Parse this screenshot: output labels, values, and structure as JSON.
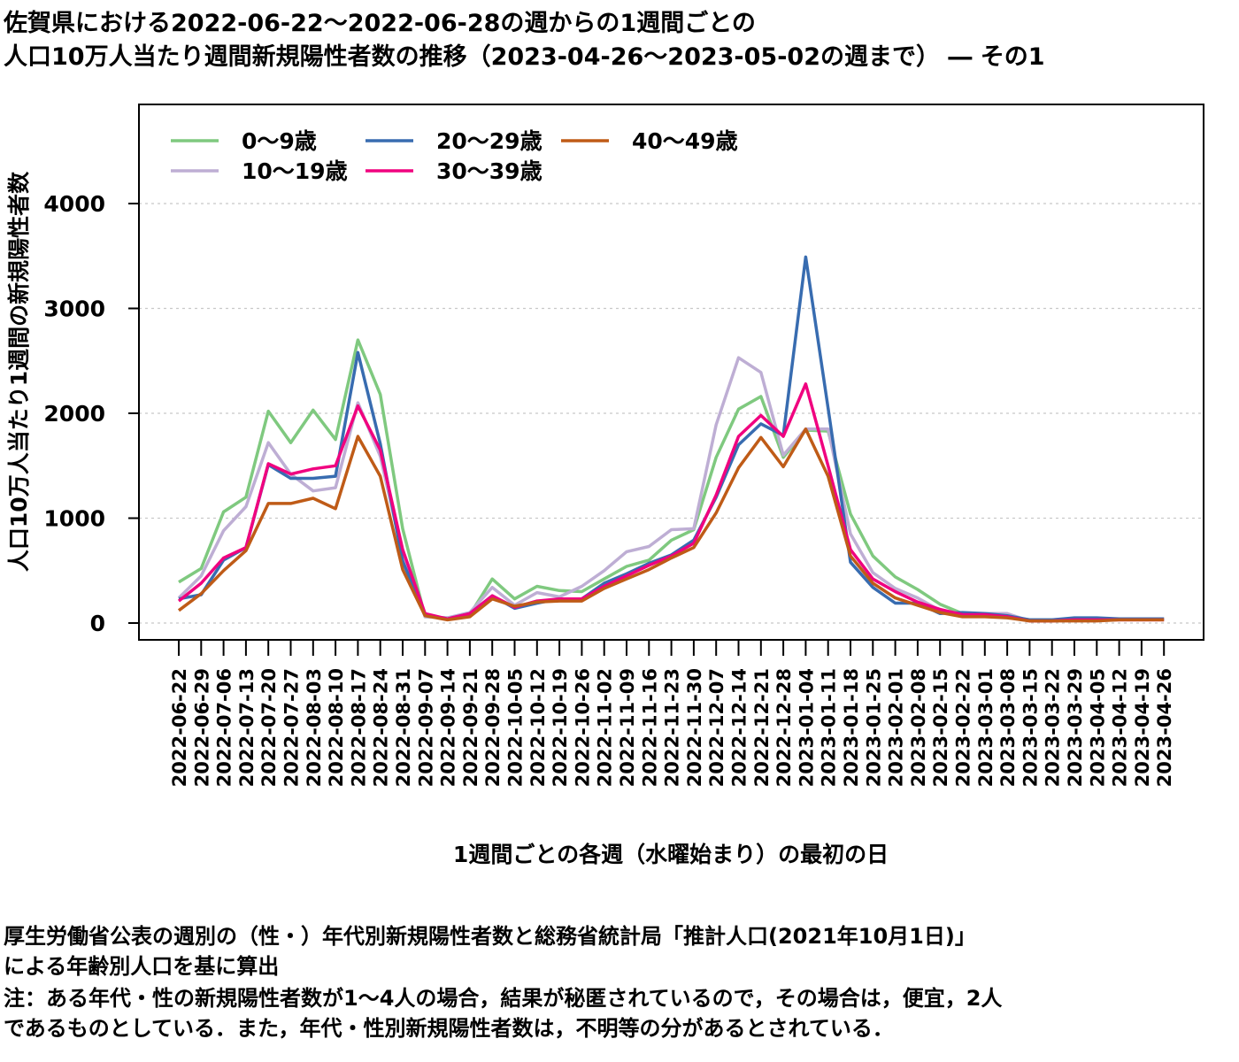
{
  "title": {
    "line1": "佐賀県における2022-06-22〜2022-06-28の週からの1週間ごとの",
    "line2": "人口10万人当たり週間新規陽性者数の推移（2023-04-26〜2023-05-02の週まで） ― その1"
  },
  "notes": {
    "line1": "厚生労働省公表の週別の（性・）年代別新規陽性者数と総務省統計局「推計人口(2021年10月1日)」",
    "line2": "による年齢別人口を基に算出",
    "line3": "注：ある年代・性の新規陽性者数が1〜4人の場合，結果が秘匿されているので，その場合は，便宜，2人",
    "line4": "であるものとしている．また，年代・性別新規陽性者数は，不明等の分があるとされている．"
  },
  "chart_data": {
    "type": "line",
    "xlabel": "1週間ごとの各週（水曜始まり）の最初の日",
    "ylabel": "人口10万人当たり1週間の新規陽性者数",
    "ylim": [
      -80,
      4950
    ],
    "yticks": [
      0,
      1000,
      2000,
      3000,
      4000
    ],
    "grid": "horizontal dotted",
    "legend_position": "top-left",
    "categories": [
      "2022-06-22",
      "2022-06-29",
      "2022-07-06",
      "2022-07-13",
      "2022-07-20",
      "2022-07-27",
      "2022-08-03",
      "2022-08-10",
      "2022-08-17",
      "2022-08-24",
      "2022-08-31",
      "2022-09-07",
      "2022-09-14",
      "2022-09-21",
      "2022-09-28",
      "2022-10-05",
      "2022-10-12",
      "2022-10-19",
      "2022-10-26",
      "2022-11-02",
      "2022-11-09",
      "2022-11-16",
      "2022-11-23",
      "2022-11-30",
      "2022-12-07",
      "2022-12-14",
      "2022-12-21",
      "2022-12-28",
      "2023-01-04",
      "2023-01-11",
      "2023-01-18",
      "2023-01-25",
      "2023-02-01",
      "2023-02-08",
      "2023-02-15",
      "2023-02-22",
      "2023-03-01",
      "2023-03-08",
      "2023-03-15",
      "2023-03-22",
      "2023-03-29",
      "2023-04-05",
      "2023-04-12",
      "2023-04-19",
      "2023-04-26"
    ],
    "series": [
      {
        "name": "0〜9歳",
        "color": "#7fc97f",
        "values": [
          390,
          520,
          1060,
          1200,
          2020,
          1720,
          2030,
          1750,
          2700,
          2180,
          900,
          60,
          50,
          80,
          420,
          230,
          350,
          310,
          300,
          420,
          540,
          600,
          790,
          890,
          1580,
          2040,
          2160,
          1580,
          1840,
          1830,
          1040,
          640,
          440,
          320,
          180,
          90,
          90,
          60,
          30,
          30,
          40,
          40,
          40,
          40,
          40
        ]
      },
      {
        "name": "10〜19歳",
        "color": "#beaed4",
        "values": [
          240,
          450,
          880,
          1110,
          1720,
          1420,
          1260,
          1290,
          2100,
          1590,
          650,
          60,
          50,
          100,
          340,
          170,
          290,
          250,
          350,
          500,
          680,
          730,
          890,
          900,
          1890,
          2530,
          2390,
          1600,
          1850,
          1850,
          850,
          480,
          330,
          240,
          120,
          90,
          90,
          90,
          20,
          20,
          30,
          40,
          40,
          40,
          30
        ]
      },
      {
        "name": "20〜29歳",
        "color": "#386cb0",
        "values": [
          230,
          270,
          600,
          720,
          1510,
          1380,
          1380,
          1400,
          2580,
          1710,
          590,
          80,
          40,
          90,
          260,
          140,
          190,
          230,
          230,
          380,
          470,
          570,
          650,
          790,
          1200,
          1700,
          1900,
          1790,
          3490,
          2050,
          580,
          340,
          190,
          190,
          90,
          100,
          90,
          70,
          30,
          30,
          50,
          50,
          40,
          40,
          40
        ]
      },
      {
        "name": "30〜39歳",
        "color": "#f0027f",
        "values": [
          210,
          380,
          620,
          720,
          1520,
          1420,
          1470,
          1500,
          2070,
          1650,
          700,
          90,
          40,
          90,
          260,
          150,
          210,
          230,
          230,
          350,
          450,
          550,
          640,
          760,
          1220,
          1780,
          1980,
          1780,
          2280,
          1500,
          700,
          420,
          300,
          200,
          130,
          80,
          80,
          60,
          20,
          20,
          30,
          30,
          30,
          30,
          30
        ]
      },
      {
        "name": "40〜49歳",
        "color": "#bf5b17",
        "values": [
          120,
          280,
          500,
          690,
          1140,
          1140,
          1190,
          1090,
          1780,
          1400,
          510,
          70,
          30,
          60,
          230,
          160,
          200,
          210,
          210,
          330,
          420,
          510,
          620,
          720,
          1050,
          1480,
          1770,
          1490,
          1850,
          1400,
          640,
          380,
          240,
          170,
          100,
          60,
          60,
          50,
          20,
          20,
          20,
          20,
          30,
          30,
          30
        ]
      }
    ]
  }
}
